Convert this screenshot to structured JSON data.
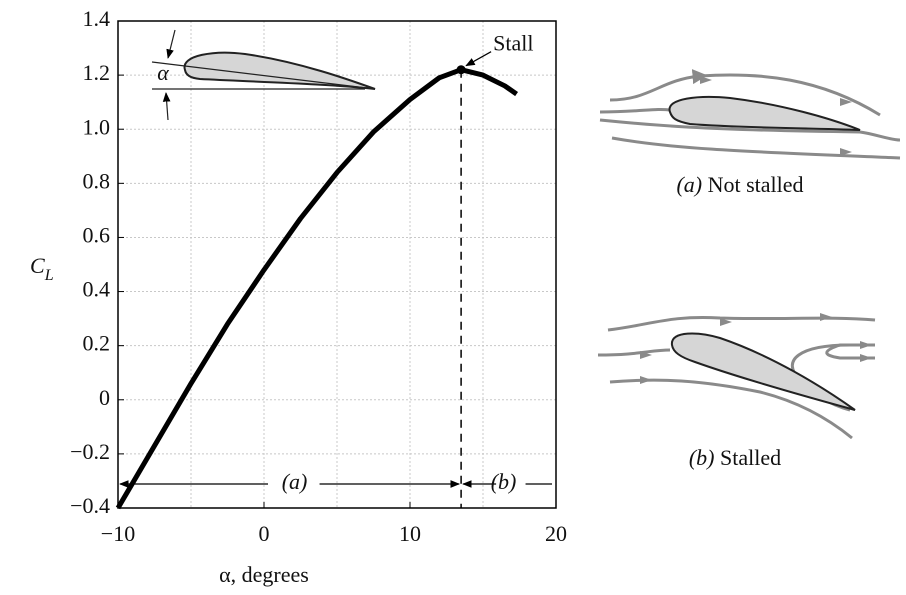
{
  "chart_data": {
    "type": "line",
    "x": [
      -10,
      -7.5,
      -5,
      -2.5,
      0,
      2.5,
      5,
      7.5,
      10,
      12,
      13.5,
      15,
      16.5,
      17.3
    ],
    "values": [
      -0.4,
      -0.17,
      0.06,
      0.28,
      0.48,
      0.67,
      0.84,
      0.99,
      1.11,
      1.19,
      1.22,
      1.2,
      1.16,
      1.13
    ],
    "color": "#000000",
    "xlim": [
      -10,
      20
    ],
    "ylim": [
      -0.4,
      1.4
    ],
    "xticks": [
      {
        "value": -10,
        "label": "−10"
      },
      0,
      10,
      20
    ],
    "xgrid": [
      -5,
      5,
      15
    ],
    "yticks": [
      {
        "value": -0.4,
        "label": "−0.4"
      },
      {
        "value": -0.2,
        "label": "−0.2"
      },
      0,
      0.2,
      0.4,
      0.6,
      0.8,
      {
        "value": 1.0,
        "label": "1.0"
      },
      1.2,
      1.4
    ],
    "grid": true,
    "x_label": "α, degrees",
    "y_label": "C",
    "y_label_sub": "L",
    "stall": {
      "x": 13.5,
      "y": 1.22,
      "label": "Stall"
    },
    "region_a": "(a)",
    "region_b": "(b)",
    "inset_angle": "α",
    "caption_a": {
      "tag": "(a)",
      "text": "Not stalled"
    },
    "caption_b": {
      "tag": "(b)",
      "text": "Stalled"
    }
  }
}
